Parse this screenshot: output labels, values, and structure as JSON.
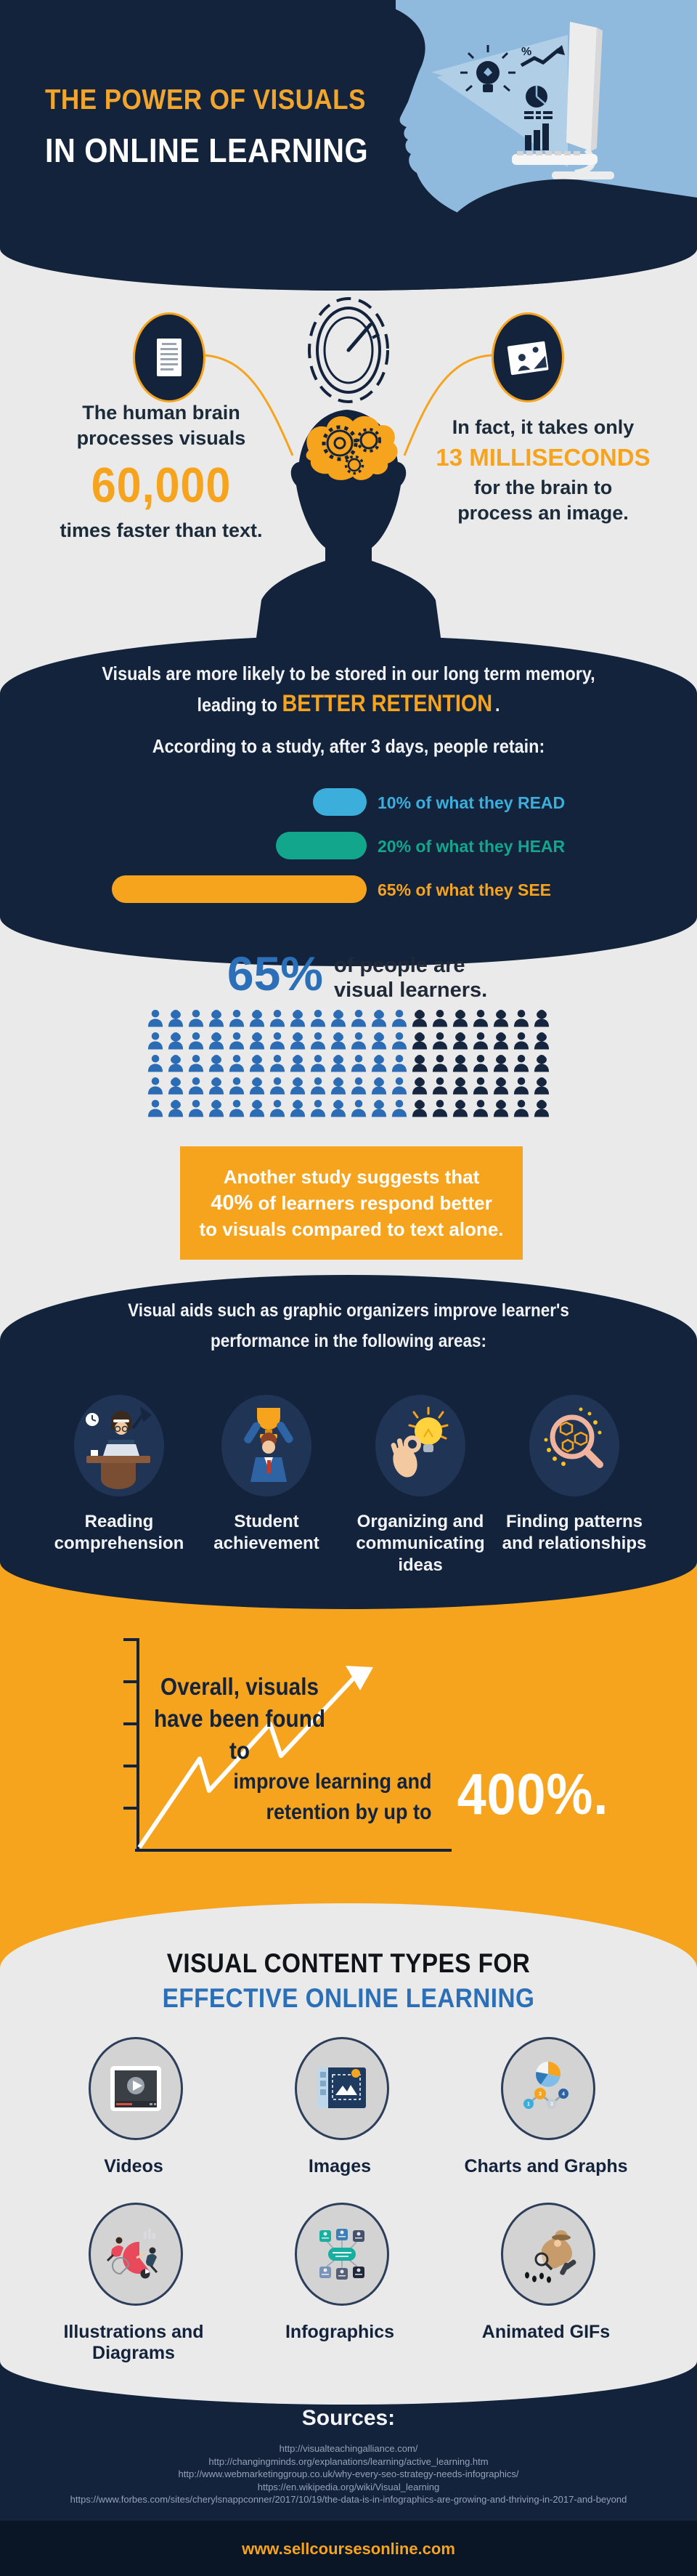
{
  "header": {
    "title_line1": "THE POWER OF VISUALS",
    "title_line2": "IN ONLINE LEARNING",
    "title_accent_color": "#F2A52C",
    "background_color": "#14233C",
    "screen_color": "#8FBADD",
    "icons": [
      "lightbulb-icon",
      "percent-growth-icon",
      "pie-chart-icon",
      "bar-chart-icon",
      "monitor-icon",
      "person-profile-silhouette"
    ]
  },
  "brain_section": {
    "left_stat": {
      "line1": "The human brain",
      "line2": "processes visuals",
      "big_number": "60,000",
      "line3": "times faster than text."
    },
    "right_stat": {
      "line1": "In fact, it takes only",
      "highlight": "13 MILLISECONDS",
      "line2": "for the brain to",
      "line3": "process an image."
    },
    "icons": [
      "document-icon",
      "speedometer-icon",
      "photo-icon",
      "head-gears-illustration"
    ]
  },
  "retention": {
    "heading_line1": "Visuals are more likely to be stored in our long term memory,",
    "heading_line2_prefix": "leading to ",
    "heading_line2_highlight": "BETTER RETENTION",
    "heading_line2_suffix": ".",
    "subheading": "According to a study, after 3 days, people retain:",
    "bars": [
      {
        "pct": 10,
        "label": "10% of what they READ",
        "color": "#3BAEDC"
      },
      {
        "pct": 20,
        "label": "20% of what they HEAR",
        "color": "#12A78D"
      },
      {
        "pct": 65,
        "label": "65% of what they SEE",
        "color": "#F6A41E"
      }
    ]
  },
  "visual_learners": {
    "stat": "65%",
    "desc_line1": "of people are",
    "desc_line2": "visual learners.",
    "pictograph": {
      "rows": 5,
      "per_row": 20,
      "highlighted_per_row": 13,
      "filled_color": "#2B6CB5",
      "empty_color": "#16263F"
    }
  },
  "study_callout": {
    "line1": "Another study suggests that",
    "line2_bold": "40%",
    "line2_rest": " of learners respond better",
    "line3": "to visuals compared to text alone."
  },
  "visual_aids": {
    "heading_line1": "Visual aids such as graphic organizers improve learner's",
    "heading_line2": "performance in the following areas:",
    "areas": [
      {
        "label_line1": "Reading",
        "label_line2": "comprehension",
        "icon": "reading-desk-icon"
      },
      {
        "label_line1": "Student",
        "label_line2": "achievement",
        "icon": "trophy-winner-icon"
      },
      {
        "label_line1": "Organizing and",
        "label_line2": "communicating ideas",
        "icon": "idea-hand-icon"
      },
      {
        "label_line1": "Finding patterns",
        "label_line2": "and relationships",
        "icon": "magnifier-pattern-icon"
      }
    ]
  },
  "improvement": {
    "line1": "Overall, visuals",
    "line2": "have been found to",
    "line3": "improve learning and",
    "line4": "retention by up to",
    "stat": "400%."
  },
  "content_types": {
    "heading_line1": "VISUAL CONTENT TYPES FOR",
    "heading_line2": "EFFECTIVE ONLINE LEARNING",
    "heading_line2_color": "#2A6FB8",
    "items": [
      {
        "label": "Videos",
        "icon": "video-player-icon"
      },
      {
        "label": "Images",
        "icon": "image-editor-icon"
      },
      {
        "label": "Charts and Graphs",
        "icon": "charts-graphs-icon"
      },
      {
        "label": "Illustrations and Diagrams",
        "icon": "illustration-icon"
      },
      {
        "label": "Infographics",
        "icon": "infographic-icon"
      },
      {
        "label": "Animated GIFs",
        "icon": "detective-gif-icon"
      }
    ]
  },
  "footer": {
    "heading": "Sources:",
    "sources": [
      "http://visualteachingalliance.com/",
      "http://changingminds.org/explanations/learning/active_learning.htm",
      "http://www.webmarketinggroup.co.uk/why-every-seo-strategy-needs-infographics/",
      "https://en.wikipedia.org/wiki/Visual_learning",
      "https://www.forbes.com/sites/cherylsnappconner/2017/10/19/the-data-is-in-infographics-are-growing-and-thriving-in-2017-and-beyond"
    ],
    "site": "www.sellcoursesonline.com"
  },
  "chart_data": [
    {
      "type": "bar",
      "title": "According to a study, after 3 days, people retain:",
      "categories": [
        "READ",
        "HEAR",
        "SEE"
      ],
      "values": [
        10,
        20,
        65
      ],
      "unit": "%",
      "orientation": "horizontal",
      "bar_colors": [
        "#3BAEDC",
        "#12A78D",
        "#F6A41E"
      ],
      "legend_position": "right-of-bars",
      "grid": false
    },
    {
      "type": "pie",
      "title": "65% of people are visual learners.",
      "categories": [
        "visual learners",
        "other"
      ],
      "values": [
        65,
        35
      ],
      "render_style": "pictograph",
      "rows": 5,
      "per_row": 20,
      "highlighted_per_row": 13,
      "filled_color": "#2B6CB5",
      "empty_color": "#16263F"
    },
    {
      "type": "line",
      "title": "Overall, visuals have been found to improve learning and retention by up to 400%.",
      "value": 400,
      "unit": "%",
      "trend": "up",
      "grid": false
    }
  ]
}
